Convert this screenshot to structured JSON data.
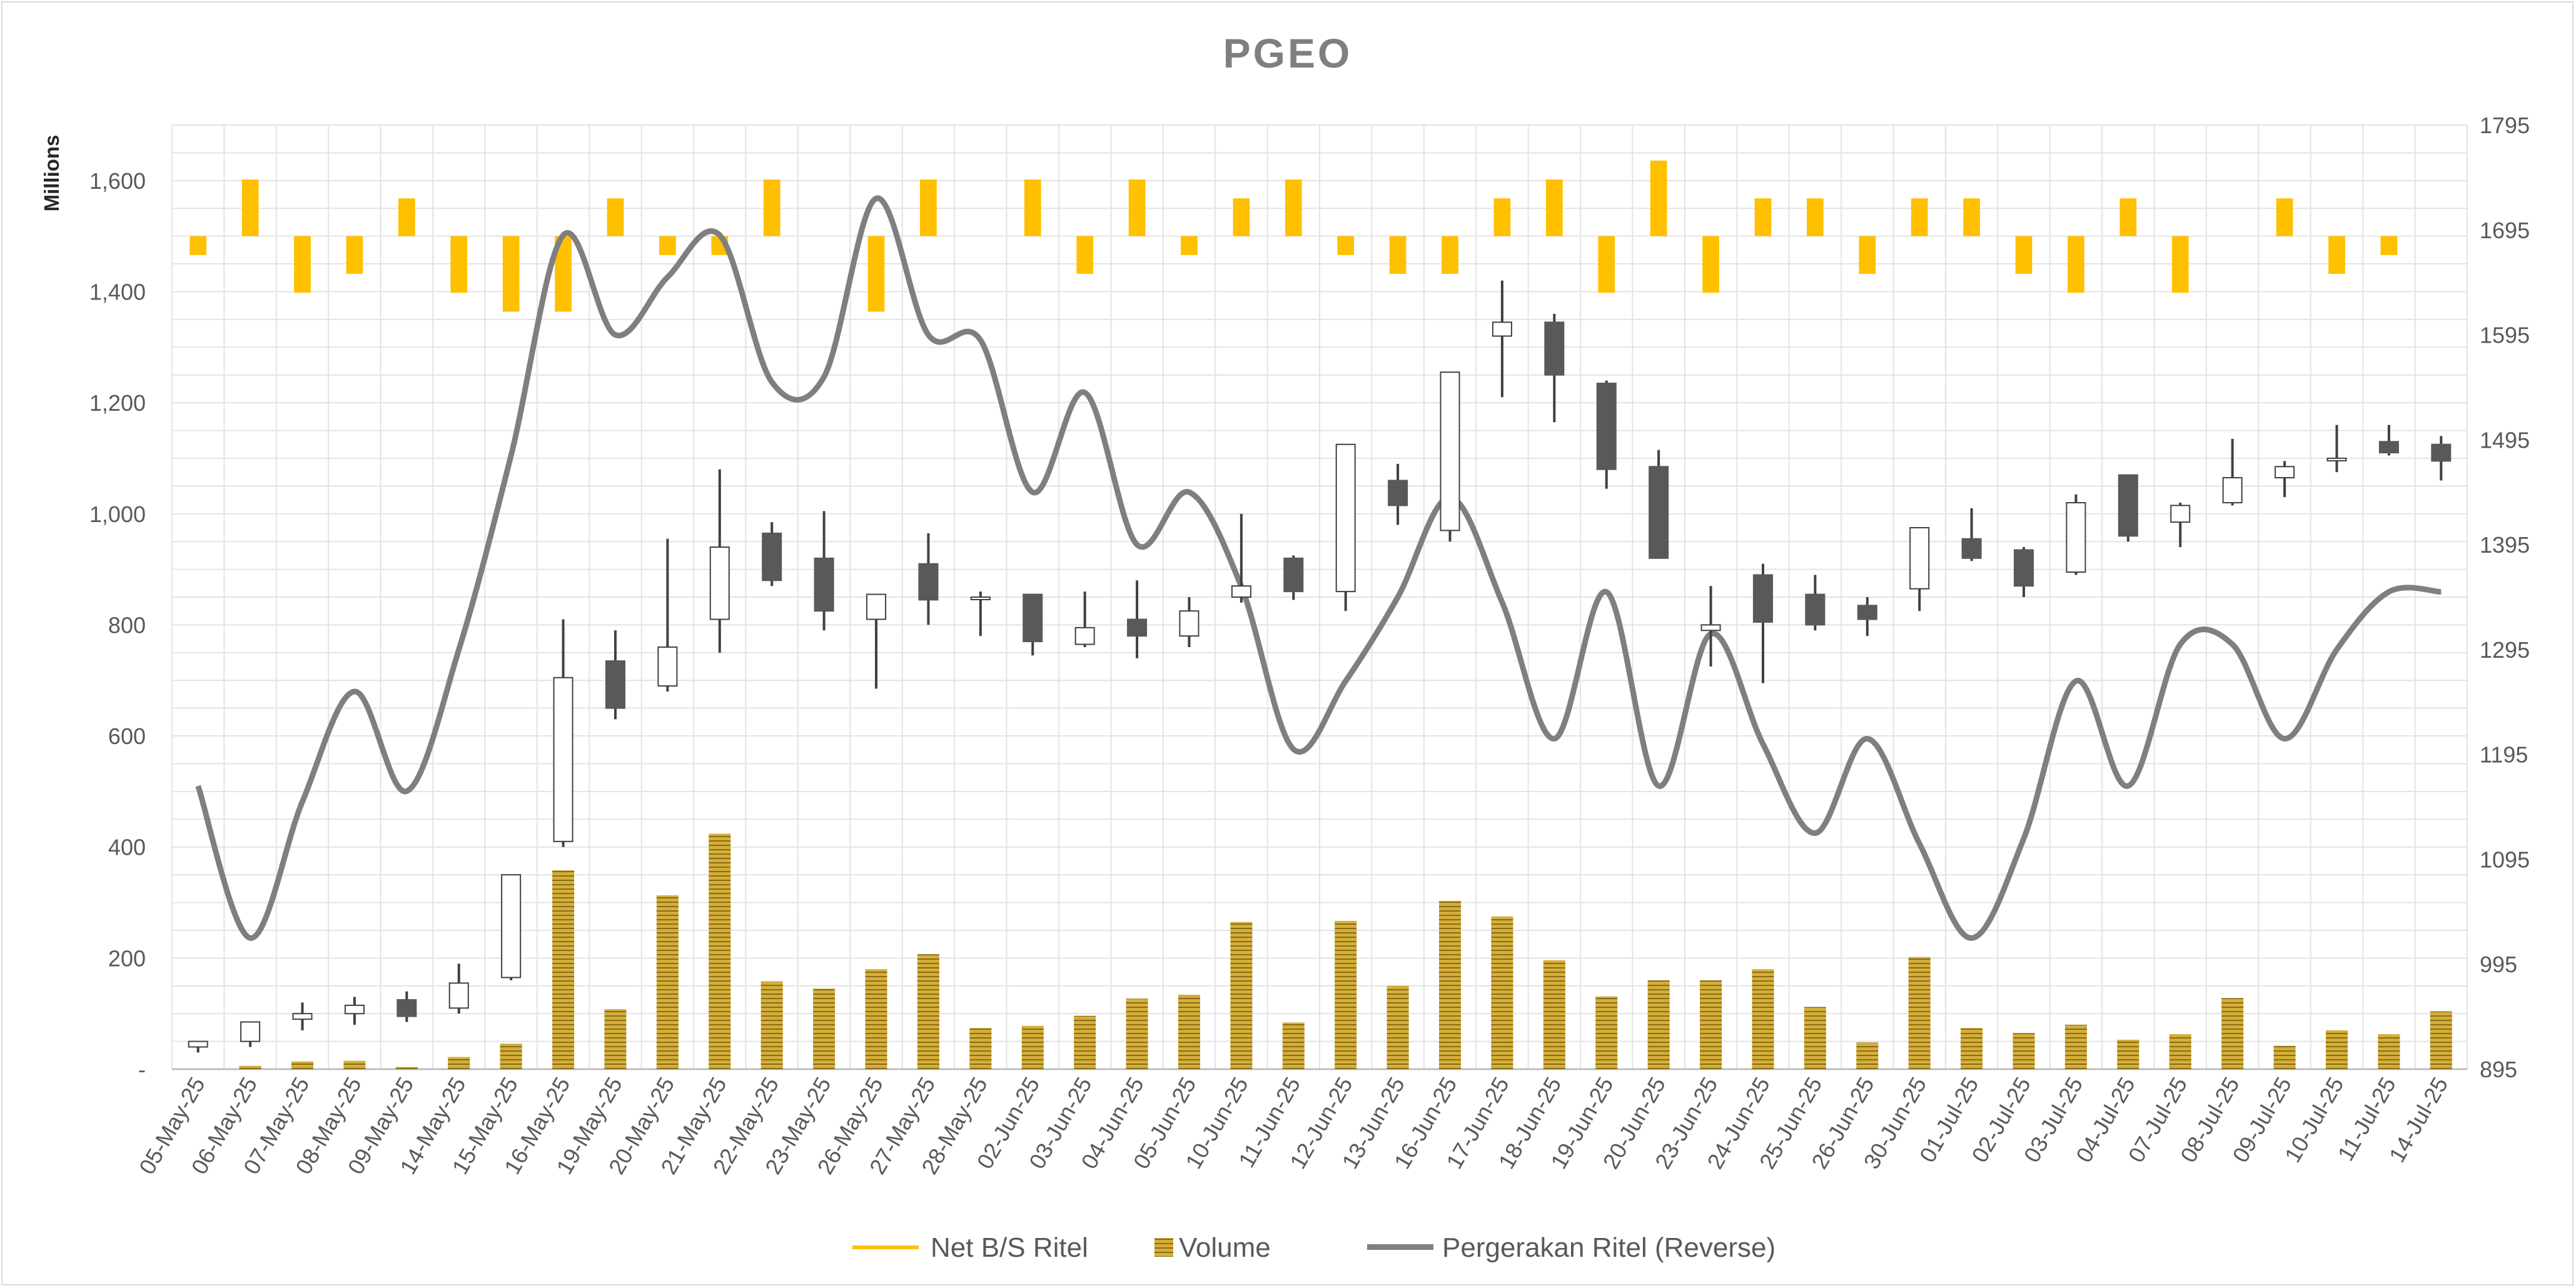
{
  "chart_data": {
    "type": "candlestick-combo",
    "title": "PGEO",
    "left_axis_unit": "Millions",
    "left_axis": {
      "min": 0,
      "max": 1700,
      "ticks": [
        0,
        200,
        400,
        600,
        800,
        1000,
        1200,
        1400,
        1600
      ],
      "tick_labels": [
        "-",
        "200",
        "400",
        "600",
        "800",
        "1,000",
        "1,200",
        "1,400",
        "1,600"
      ]
    },
    "right_axis": {
      "min": 895,
      "max": 1795,
      "ticks": [
        895,
        995,
        1095,
        1195,
        1295,
        1395,
        1495,
        1595,
        1695,
        1795
      ],
      "tick_labels": [
        "895",
        "995",
        "1095",
        "1195",
        "1295",
        "1395",
        "1495",
        "1595",
        "1695",
        "1795"
      ]
    },
    "categories": [
      "05-May-25",
      "06-May-25",
      "07-May-25",
      "08-May-25",
      "09-May-25",
      "14-May-25",
      "15-May-25",
      "16-May-25",
      "19-May-25",
      "20-May-25",
      "21-May-25",
      "22-May-25",
      "23-May-25",
      "26-May-25",
      "27-May-25",
      "28-May-25",
      "02-Jun-25",
      "03-Jun-25",
      "04-Jun-25",
      "05-Jun-25",
      "10-Jun-25",
      "11-Jun-25",
      "12-Jun-25",
      "13-Jun-25",
      "16-Jun-25",
      "17-Jun-25",
      "18-Jun-25",
      "19-Jun-25",
      "20-Jun-25",
      "23-Jun-25",
      "24-Jun-25",
      "25-Jun-25",
      "26-Jun-25",
      "30-Jun-25",
      "01-Jul-25",
      "02-Jul-25",
      "03-Jul-25",
      "04-Jul-25",
      "07-Jul-25",
      "08-Jul-25",
      "09-Jul-25",
      "10-Jul-25",
      "11-Jul-25",
      "14-Jul-25"
    ],
    "ohlc": [
      [
        40,
        50,
        30,
        50
      ],
      [
        50,
        85,
        40,
        85
      ],
      [
        90,
        120,
        70,
        100
      ],
      [
        100,
        130,
        80,
        115
      ],
      [
        125,
        140,
        85,
        95
      ],
      [
        110,
        190,
        100,
        155
      ],
      [
        165,
        350,
        160,
        350
      ],
      [
        410,
        810,
        400,
        705
      ],
      [
        735,
        790,
        630,
        650
      ],
      [
        690,
        955,
        680,
        760
      ],
      [
        810,
        1080,
        750,
        940
      ],
      [
        965,
        985,
        870,
        880
      ],
      [
        920,
        1005,
        790,
        825
      ],
      [
        810,
        855,
        685,
        855
      ],
      [
        910,
        965,
        800,
        845
      ],
      [
        850,
        860,
        780,
        850
      ],
      [
        855,
        855,
        745,
        770
      ],
      [
        765,
        860,
        760,
        795
      ],
      [
        810,
        880,
        740,
        780
      ],
      [
        780,
        850,
        760,
        825
      ],
      [
        850,
        1000,
        840,
        870
      ],
      [
        920,
        925,
        845,
        860
      ],
      [
        860,
        1125,
        825,
        1125
      ],
      [
        1060,
        1090,
        980,
        1015
      ],
      [
        970,
        1255,
        950,
        1255
      ],
      [
        1320,
        1420,
        1210,
        1345
      ],
      [
        1345,
        1360,
        1165,
        1250
      ],
      [
        1235,
        1240,
        1045,
        1080
      ],
      [
        1085,
        1115,
        920,
        920
      ],
      [
        790,
        870,
        725,
        800
      ],
      [
        890,
        910,
        695,
        805
      ],
      [
        855,
        890,
        790,
        800
      ],
      [
        835,
        850,
        780,
        810
      ],
      [
        865,
        975,
        825,
        975
      ],
      [
        955,
        1010,
        915,
        920
      ],
      [
        935,
        940,
        850,
        870
      ],
      [
        895,
        1035,
        890,
        1020
      ],
      [
        1070,
        1070,
        950,
        960
      ],
      [
        985,
        1020,
        940,
        1015
      ],
      [
        1020,
        1135,
        1015,
        1065
      ],
      [
        1065,
        1095,
        1030,
        1085
      ],
      [
        1100,
        1160,
        1075,
        1100
      ],
      [
        1130,
        1160,
        1105,
        1110
      ],
      [
        1125,
        1140,
        1060,
        1095
      ]
    ],
    "series": [
      {
        "name": "Net B/S Ritel",
        "values": [
          -1,
          3,
          -3,
          -2,
          2,
          -3,
          -4,
          -4,
          2,
          -1,
          -1,
          3,
          0,
          -4,
          3,
          0,
          3,
          -2,
          3,
          -1,
          2,
          3,
          -1,
          -2,
          -2,
          2,
          3,
          -3,
          4,
          -3,
          2,
          2,
          -2,
          2,
          2,
          -2,
          -3,
          2,
          -3,
          0,
          2,
          -2,
          -1,
          0
        ]
      },
      {
        "name": "Volume",
        "values": [
          0,
          6,
          14,
          15,
          4,
          22,
          46,
          358,
          108,
          313,
          424,
          158,
          145,
          180,
          207,
          74,
          78,
          96,
          127,
          134,
          265,
          84,
          267,
          150,
          303,
          275,
          196,
          131,
          160,
          160,
          180,
          112,
          48,
          202,
          74,
          65,
          80,
          53,
          63,
          128,
          42,
          70,
          63,
          104
        ]
      },
      {
        "name": "Pergerakan Ritel (Reverse)",
        "values": [
          1165,
          1020,
          1150,
          1255,
          1160,
          1295,
          1480,
          1690,
          1595,
          1650,
          1690,
          1550,
          1555,
          1725,
          1595,
          1590,
          1445,
          1540,
          1395,
          1445,
          1355,
          1200,
          1265,
          1345,
          1440,
          1340,
          1210,
          1350,
          1165,
          1310,
          1205,
          1120,
          1210,
          1110,
          1020,
          1115,
          1265,
          1165,
          1300,
          1300,
          1210,
          1295,
          1350,
          1350
        ]
      }
    ],
    "legend": [
      "Net B/S Ritel",
      "Volume",
      "Pergerakan Ritel (Reverse)"
    ],
    "legend_position": "bottom",
    "grid": true,
    "colors": {
      "candle_up_fill": "#ffffff",
      "candle_down_fill": "#595959",
      "candle_line": "#404040",
      "net_bs": "#ffc000",
      "volume": "#c9a227",
      "line": "#7f7f7f",
      "grid": "#e3e3e3"
    }
  }
}
